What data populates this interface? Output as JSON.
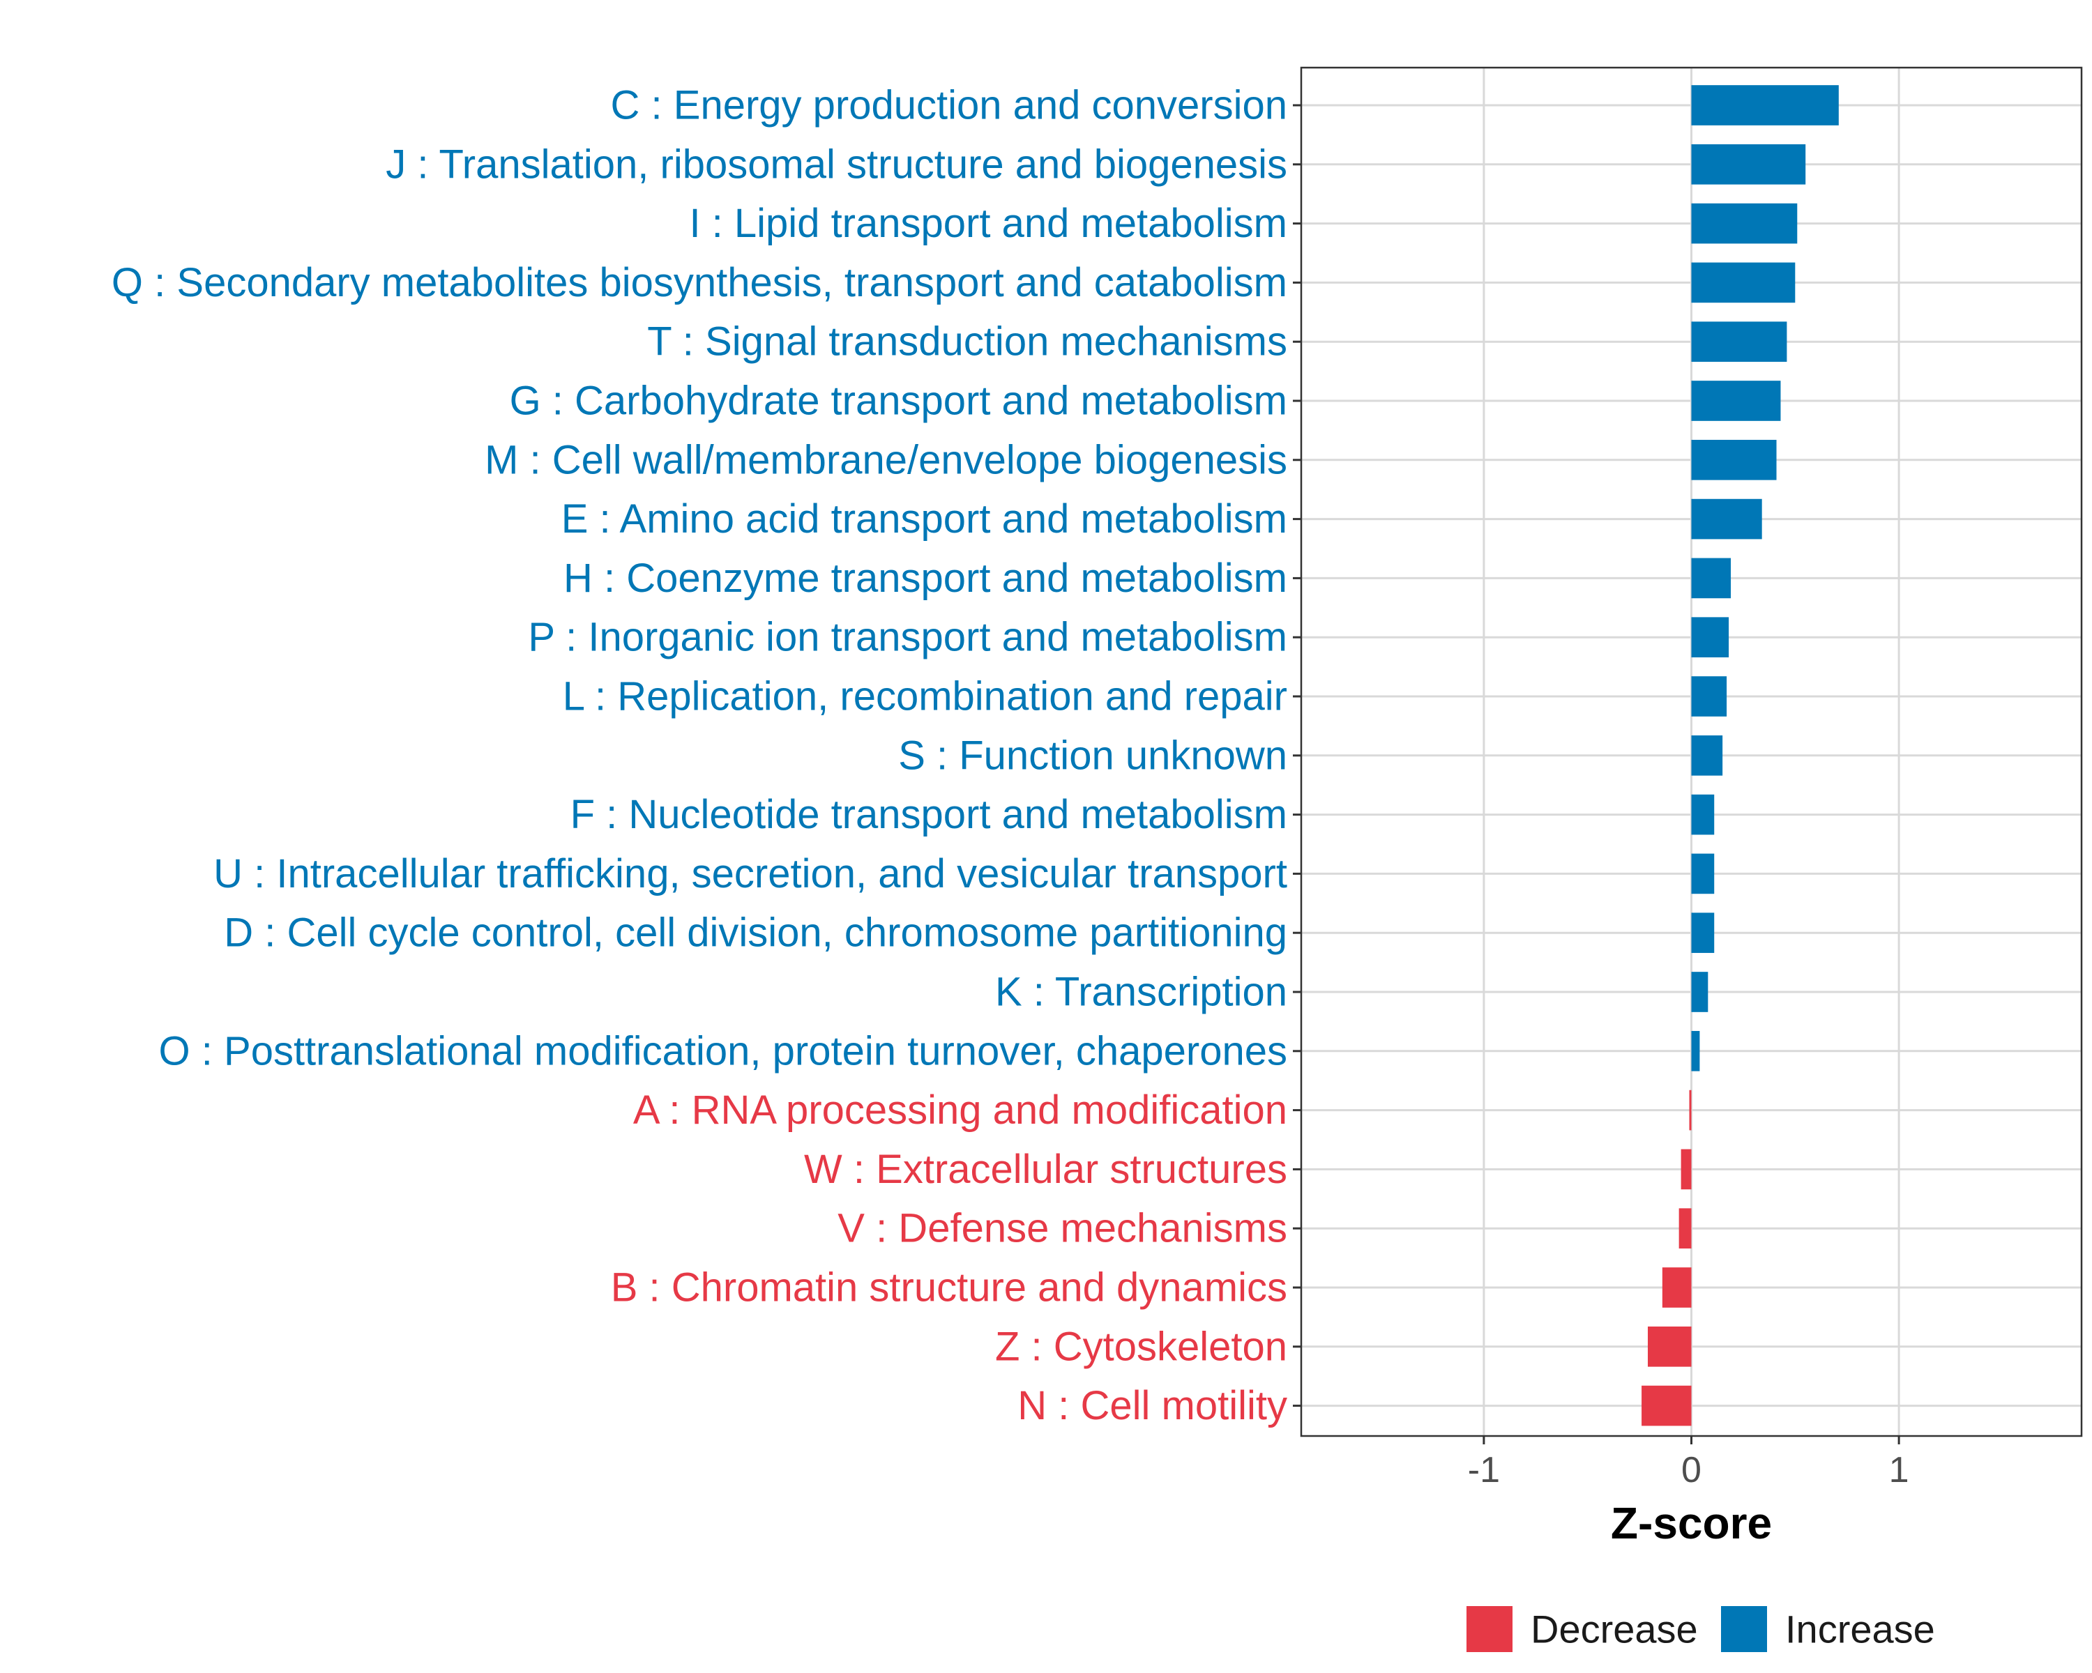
{
  "chart_data": {
    "type": "bar",
    "orientation": "horizontal",
    "xlabel": "Z-score",
    "ylabel": "",
    "xlim": [
      -1.88,
      1.88
    ],
    "x_ticks": [
      -1,
      0,
      1
    ],
    "x_tick_labels": [
      "-1",
      "0",
      "1"
    ],
    "grid": true,
    "colors": {
      "Decrease": "#e63946",
      "Increase": "#0077b6"
    },
    "legend": {
      "placement": "bottom",
      "entries": [
        {
          "name": "Decrease",
          "color": "#e63946"
        },
        {
          "name": "Increase",
          "color": "#0077b6"
        }
      ]
    },
    "categories": [
      "C : Energy production and conversion",
      "J : Translation, ribosomal structure and biogenesis",
      "I : Lipid transport and metabolism",
      "Q : Secondary metabolites biosynthesis, transport and catabolism",
      "T : Signal transduction mechanisms",
      "G : Carbohydrate transport and metabolism",
      "M : Cell wall/membrane/envelope biogenesis",
      "E : Amino acid transport and metabolism",
      "H : Coenzyme transport and metabolism",
      "P : Inorganic ion transport and metabolism",
      "L : Replication, recombination and repair",
      "S : Function unknown",
      "F : Nucleotide transport and metabolism",
      "U : Intracellular trafficking, secretion, and vesicular transport",
      "D : Cell cycle control, cell division, chromosome partitioning",
      "K : Transcription",
      "O : Posttranslational modification, protein turnover, chaperones",
      "A : RNA processing and modification",
      "W : Extracellular structures",
      "V : Defense mechanisms",
      "B : Chromatin structure and dynamics",
      "Z : Cytoskeleton",
      "N : Cell motility"
    ],
    "values": [
      0.71,
      0.55,
      0.51,
      0.5,
      0.46,
      0.43,
      0.41,
      0.34,
      0.19,
      0.18,
      0.17,
      0.15,
      0.11,
      0.11,
      0.11,
      0.08,
      0.04,
      -0.01,
      -0.05,
      -0.06,
      -0.14,
      -0.21,
      -0.24
    ],
    "groups": [
      "Increase",
      "Increase",
      "Increase",
      "Increase",
      "Increase",
      "Increase",
      "Increase",
      "Increase",
      "Increase",
      "Increase",
      "Increase",
      "Increase",
      "Increase",
      "Increase",
      "Increase",
      "Increase",
      "Increase",
      "Decrease",
      "Decrease",
      "Decrease",
      "Decrease",
      "Decrease",
      "Decrease"
    ]
  }
}
